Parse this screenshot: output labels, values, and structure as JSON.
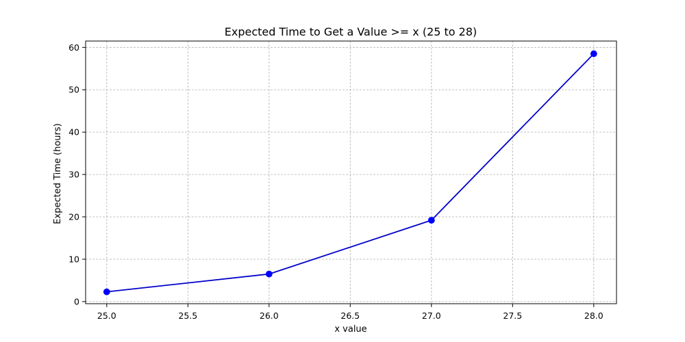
{
  "chart_data": {
    "type": "line",
    "title": "Expected Time to Get a Value >= x (25 to 28)",
    "xlabel": "x value",
    "ylabel": "Expected Time (hours)",
    "xlim": [
      24.87,
      28.14
    ],
    "ylim": [
      -0.5,
      61.5
    ],
    "xticks": [
      "25.0",
      "25.5",
      "26.0",
      "26.5",
      "27.0",
      "27.5",
      "28.0"
    ],
    "yticks": [
      "0",
      "10",
      "20",
      "30",
      "40",
      "50",
      "60"
    ],
    "grid": true,
    "legend": "none",
    "series": [
      {
        "x": [
          25,
          26,
          27,
          28
        ],
        "y": [
          2.3,
          6.5,
          19.2,
          58.5
        ],
        "color": "#0000cc",
        "marker_color": "#0000ff",
        "marker": "circle"
      }
    ]
  }
}
